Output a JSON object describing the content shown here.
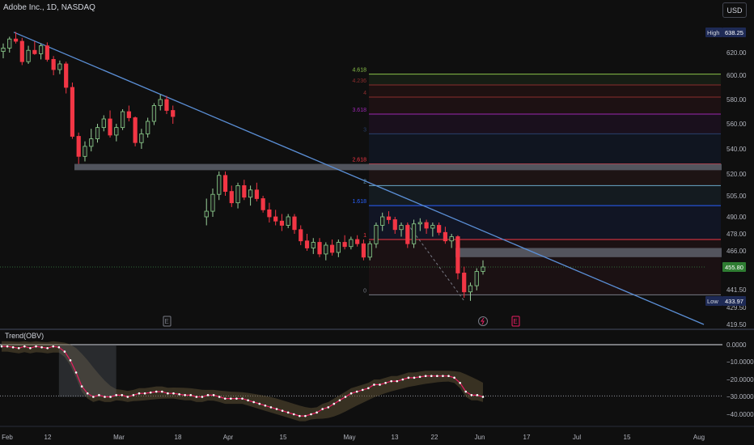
{
  "header": {
    "symbol_title": "Adobe Inc., 1D, NASDAQ",
    "currency_button": "USD"
  },
  "indicator": {
    "label": "Trend(OBV)"
  },
  "price_badges": {
    "high_label": "High",
    "high_value": "638.25",
    "low_label": "Low",
    "low_value": "433.97",
    "last_value": "455.80"
  },
  "chart_data": [
    {
      "type": "candlestick",
      "title": "Adobe Inc., 1D, NASDAQ",
      "y_ticks": [
        "620.00",
        "600.00",
        "580.00",
        "560.00",
        "540.00",
        "520.00",
        "505.00",
        "490.00",
        "478.00",
        "466.00",
        "441.50",
        "429.50",
        "419.50"
      ],
      "x_ticks": [
        "Feb",
        "12",
        "Mar",
        "18",
        "Apr",
        "15",
        "May",
        "13",
        "22",
        "Jun",
        "17",
        "Jul",
        "15",
        "Aug"
      ],
      "ylim": [
        419.5,
        640
      ],
      "high": 638.25,
      "low": 433.97,
      "last": 455.8,
      "candles": [
        {
          "o": 621,
          "h": 628,
          "l": 615,
          "c": 624
        },
        {
          "o": 624,
          "h": 634,
          "l": 620,
          "c": 632
        },
        {
          "o": 632,
          "h": 638.25,
          "l": 628,
          "c": 630
        },
        {
          "o": 630,
          "h": 633,
          "l": 609,
          "c": 612
        },
        {
          "o": 612,
          "h": 626,
          "l": 610,
          "c": 622
        },
        {
          "o": 622,
          "h": 630,
          "l": 618,
          "c": 619
        },
        {
          "o": 619,
          "h": 628,
          "l": 614,
          "c": 626
        },
        {
          "o": 626,
          "h": 629,
          "l": 612,
          "c": 614
        },
        {
          "o": 614,
          "h": 617,
          "l": 600,
          "c": 605
        },
        {
          "o": 605,
          "h": 613,
          "l": 601,
          "c": 610
        },
        {
          "o": 610,
          "h": 612,
          "l": 585,
          "c": 590
        },
        {
          "o": 590,
          "h": 594,
          "l": 548,
          "c": 550
        },
        {
          "o": 550,
          "h": 553,
          "l": 528,
          "c": 534
        },
        {
          "o": 534,
          "h": 546,
          "l": 530,
          "c": 542
        },
        {
          "o": 542,
          "h": 556,
          "l": 538,
          "c": 548
        },
        {
          "o": 548,
          "h": 560,
          "l": 545,
          "c": 557
        },
        {
          "o": 557,
          "h": 567,
          "l": 554,
          "c": 564
        },
        {
          "o": 564,
          "h": 571,
          "l": 549,
          "c": 551
        },
        {
          "o": 551,
          "h": 560,
          "l": 546,
          "c": 557
        },
        {
          "o": 557,
          "h": 572,
          "l": 555,
          "c": 570
        },
        {
          "o": 570,
          "h": 575,
          "l": 562,
          "c": 565
        },
        {
          "o": 565,
          "h": 566,
          "l": 542,
          "c": 545
        },
        {
          "o": 545,
          "h": 556,
          "l": 540,
          "c": 552
        },
        {
          "o": 552,
          "h": 565,
          "l": 549,
          "c": 562
        },
        {
          "o": 562,
          "h": 577,
          "l": 559,
          "c": 575
        },
        {
          "o": 575,
          "h": 584,
          "l": 571,
          "c": 580
        },
        {
          "o": 580,
          "h": 583,
          "l": 568,
          "c": 571
        },
        {
          "o": 571,
          "h": 575,
          "l": 560,
          "c": 566
        },
        {
          "o": 490,
          "h": 503,
          "l": 484,
          "c": 494
        },
        {
          "o": 494,
          "h": 510,
          "l": 490,
          "c": 506
        },
        {
          "o": 506,
          "h": 522,
          "l": 502,
          "c": 519
        },
        {
          "o": 519,
          "h": 522,
          "l": 505,
          "c": 508
        },
        {
          "o": 508,
          "h": 512,
          "l": 497,
          "c": 500
        },
        {
          "o": 500,
          "h": 514,
          "l": 496,
          "c": 512
        },
        {
          "o": 512,
          "h": 516,
          "l": 502,
          "c": 504
        },
        {
          "o": 504,
          "h": 512,
          "l": 498,
          "c": 509
        },
        {
          "o": 509,
          "h": 514,
          "l": 501,
          "c": 503
        },
        {
          "o": 503,
          "h": 505,
          "l": 493,
          "c": 495
        },
        {
          "o": 495,
          "h": 500,
          "l": 486,
          "c": 490
        },
        {
          "o": 490,
          "h": 495,
          "l": 484,
          "c": 487
        },
        {
          "o": 487,
          "h": 492,
          "l": 480,
          "c": 484
        },
        {
          "o": 484,
          "h": 492,
          "l": 482,
          "c": 490
        },
        {
          "o": 490,
          "h": 492,
          "l": 478,
          "c": 481
        },
        {
          "o": 481,
          "h": 484,
          "l": 470,
          "c": 473
        },
        {
          "o": 473,
          "h": 478,
          "l": 466,
          "c": 468
        },
        {
          "o": 468,
          "h": 475,
          "l": 464,
          "c": 472
        },
        {
          "o": 472,
          "h": 475,
          "l": 462,
          "c": 464
        },
        {
          "o": 464,
          "h": 472,
          "l": 460,
          "c": 470
        },
        {
          "o": 470,
          "h": 474,
          "l": 463,
          "c": 465
        },
        {
          "o": 465,
          "h": 474,
          "l": 462,
          "c": 472
        },
        {
          "o": 472,
          "h": 477,
          "l": 467,
          "c": 469
        },
        {
          "o": 469,
          "h": 476,
          "l": 467,
          "c": 474
        },
        {
          "o": 474,
          "h": 477,
          "l": 469,
          "c": 471
        },
        {
          "o": 471,
          "h": 474,
          "l": 460,
          "c": 462
        },
        {
          "o": 462,
          "h": 473,
          "l": 460,
          "c": 471
        },
        {
          "o": 471,
          "h": 486,
          "l": 468,
          "c": 484
        },
        {
          "o": 484,
          "h": 493,
          "l": 480,
          "c": 490
        },
        {
          "o": 490,
          "h": 494,
          "l": 485,
          "c": 488
        },
        {
          "o": 488,
          "h": 490,
          "l": 478,
          "c": 481
        },
        {
          "o": 481,
          "h": 486,
          "l": 476,
          "c": 484
        },
        {
          "o": 484,
          "h": 486,
          "l": 468,
          "c": 471
        },
        {
          "o": 471,
          "h": 488,
          "l": 468,
          "c": 485
        },
        {
          "o": 485,
          "h": 489,
          "l": 480,
          "c": 486
        },
        {
          "o": 486,
          "h": 488,
          "l": 478,
          "c": 482
        },
        {
          "o": 482,
          "h": 486,
          "l": 476,
          "c": 484
        },
        {
          "o": 484,
          "h": 486,
          "l": 477,
          "c": 479
        },
        {
          "o": 479,
          "h": 483,
          "l": 471,
          "c": 473
        },
        {
          "o": 473,
          "h": 478,
          "l": 468,
          "c": 476
        },
        {
          "o": 476,
          "h": 477,
          "l": 448,
          "c": 452
        },
        {
          "o": 452,
          "h": 456,
          "l": 436,
          "c": 440
        },
        {
          "o": 440,
          "h": 446,
          "l": 433.97,
          "c": 444
        },
        {
          "o": 444,
          "h": 455,
          "l": 441,
          "c": 453
        },
        {
          "o": 453,
          "h": 460,
          "l": 451,
          "c": 455.8
        }
      ],
      "trendline": {
        "from_price": 638,
        "to_price": 419.5
      },
      "support_zones": [
        {
          "low": 523,
          "high": 528
        },
        {
          "low": 462,
          "high": 468
        }
      ],
      "fib_levels": [
        {
          "label": "4.618",
          "price": 601,
          "color": "#8bc34a"
        },
        {
          "label": "4.236",
          "price": 592,
          "color": "#8a2d2d"
        },
        {
          "label": "4",
          "price": 582,
          "color": "#8a2d2d"
        },
        {
          "label": "3.618",
          "price": 568,
          "color": "#9c27b0"
        },
        {
          "label": "3",
          "price": 552,
          "color": "#2a3f6b"
        },
        {
          "label": "2.618",
          "price": 528,
          "color": "#f23645"
        },
        {
          "label": "2",
          "price": 512,
          "color": "#6aa8c8"
        },
        {
          "label": "1.618",
          "price": 498,
          "color": "#2962ff"
        },
        {
          "label": "1",
          "price": 474,
          "color": "#f23645"
        },
        {
          "label": "0",
          "price": 438,
          "color": "#787b86"
        }
      ],
      "event_markers": [
        "E",
        "E"
      ]
    },
    {
      "type": "line",
      "title": "Trend(OBV)",
      "y_ticks": [
        "0.0000",
        "−10.0000",
        "−20.0000",
        "−30.0000",
        "−40.0000"
      ],
      "ylim": [
        -45,
        3
      ],
      "series": [
        {
          "name": "OBV",
          "values": [
            -1,
            -1,
            -1.5,
            -2,
            -1,
            -2,
            -1,
            -1.5,
            -2,
            -1,
            -1.5,
            -4,
            -9,
            -16,
            -24,
            -28,
            -30,
            -29,
            -30,
            -30,
            -29,
            -29,
            -30,
            -29,
            -28,
            -28,
            -27.5,
            -27,
            -27,
            -28,
            -28,
            -28.5,
            -29,
            -29,
            -30,
            -30,
            -29,
            -29,
            -30,
            -31,
            -31,
            -31,
            -31,
            -32,
            -33,
            -34,
            -35,
            -36,
            -37,
            -38,
            -39,
            -40,
            -41,
            -41,
            -40,
            -39,
            -37,
            -36,
            -34,
            -32,
            -30,
            -28,
            -27,
            -26,
            -25,
            -23,
            -23,
            -22,
            -21,
            -21,
            -20,
            -19,
            -19,
            -18.5,
            -18,
            -18,
            -18,
            -18,
            -18,
            -19,
            -22,
            -27,
            -29,
            -29,
            -30
          ]
        }
      ]
    }
  ]
}
